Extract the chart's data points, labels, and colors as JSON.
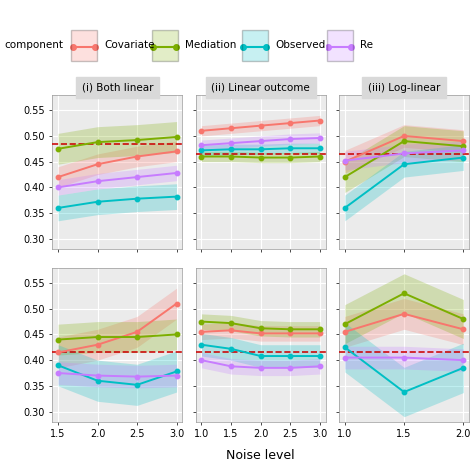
{
  "panel_titles": [
    "(i) Both linear",
    "(ii) Linear outcome",
    "(iii) Log-linear"
  ],
  "x_values": {
    "col1": [
      1.5,
      2.0,
      2.5,
      3.0
    ],
    "col2": [
      1.0,
      1.5,
      2.0,
      2.5,
      3.0
    ],
    "col3": [
      1.0,
      1.5,
      2.0
    ]
  },
  "colors": {
    "Covariate": "#F8766D",
    "Mediation": "#7CAE00",
    "Observed": "#00BFC4",
    "Residual": "#C77CFF"
  },
  "dashed_line_color": "#CC0000",
  "dashed_line_y": {
    "row1_col1": 0.485,
    "row1_col2": 0.465,
    "row1_col3": 0.465,
    "row2_col1": 0.415,
    "row2_col2": 0.415,
    "row2_col3": 0.415
  },
  "series": {
    "row1_col1": {
      "Covariate": [
        0.42,
        0.445,
        0.46,
        0.47
      ],
      "Mediation": [
        0.475,
        0.488,
        0.492,
        0.498
      ],
      "Observed": [
        0.36,
        0.372,
        0.378,
        0.382
      ],
      "Residual": [
        0.4,
        0.412,
        0.42,
        0.428
      ]
    },
    "row1_col2": {
      "Covariate": [
        0.51,
        0.515,
        0.52,
        0.525,
        0.53
      ],
      "Mediation": [
        0.46,
        0.46,
        0.458,
        0.458,
        0.46
      ],
      "Observed": [
        0.472,
        0.474,
        0.474,
        0.476,
        0.476
      ],
      "Residual": [
        0.482,
        0.486,
        0.49,
        0.494,
        0.496
      ]
    },
    "row1_col3": {
      "Covariate": [
        0.45,
        0.5,
        0.49
      ],
      "Mediation": [
        0.42,
        0.49,
        0.48
      ],
      "Observed": [
        0.36,
        0.445,
        0.458
      ],
      "Residual": [
        0.452,
        0.466,
        0.472
      ]
    },
    "row2_col1": {
      "Covariate": [
        0.415,
        0.43,
        0.455,
        0.51
      ],
      "Mediation": [
        0.44,
        0.445,
        0.445,
        0.45
      ],
      "Observed": [
        0.39,
        0.36,
        0.352,
        0.378
      ],
      "Residual": [
        0.375,
        0.37,
        0.368,
        0.37
      ]
    },
    "row2_col2": {
      "Covariate": [
        0.455,
        0.458,
        0.452,
        0.452,
        0.452
      ],
      "Mediation": [
        0.475,
        0.472,
        0.462,
        0.46,
        0.46
      ],
      "Observed": [
        0.43,
        0.422,
        0.408,
        0.408,
        0.408
      ],
      "Residual": [
        0.4,
        0.388,
        0.385,
        0.385,
        0.388
      ]
    },
    "row2_col3": {
      "Covariate": [
        0.455,
        0.49,
        0.46
      ],
      "Mediation": [
        0.47,
        0.53,
        0.48
      ],
      "Observed": [
        0.425,
        0.338,
        0.385
      ],
      "Residual": [
        0.405,
        0.405,
        0.4
      ]
    }
  },
  "bands": {
    "row1_col1": {
      "Covariate": 0.02,
      "Mediation": 0.03,
      "Observed": 0.025,
      "Residual": 0.015
    },
    "row1_col2": {
      "Covariate": 0.01,
      "Mediation": 0.01,
      "Observed": 0.01,
      "Residual": 0.01
    },
    "row1_col3": {
      "Covariate": 0.022,
      "Mediation": 0.03,
      "Observed": 0.025,
      "Residual": 0.018
    },
    "row2_col1": {
      "Covariate": 0.03,
      "Mediation": 0.03,
      "Observed": 0.04,
      "Residual": 0.022
    },
    "row2_col2": {
      "Covariate": 0.015,
      "Mediation": 0.015,
      "Observed": 0.022,
      "Residual": 0.015
    },
    "row2_col3": {
      "Covariate": 0.03,
      "Mediation": 0.038,
      "Observed": 0.048,
      "Residual": 0.022
    }
  },
  "ylim": [
    0.28,
    0.58
  ],
  "yticks": [
    0.3,
    0.35,
    0.4,
    0.45,
    0.5,
    0.55
  ],
  "bg_color": "#EBEBEB",
  "grid_color": "white",
  "xlabel": "Noise level",
  "legend_entries": [
    {
      "label": "Covariate",
      "color": "#F8766D"
    },
    {
      "label": "Mediation",
      "color": "#7CAE00"
    },
    {
      "label": "Observed",
      "color": "#00BFC4"
    },
    {
      "label": "Re",
      "color": "#C77CFF"
    }
  ],
  "legend_prefix": "component",
  "title_bg": "#D9D9D9",
  "panel_title_fontsize": 7.5,
  "tick_fontsize": 7.0,
  "xlabel_fontsize": 9.0
}
